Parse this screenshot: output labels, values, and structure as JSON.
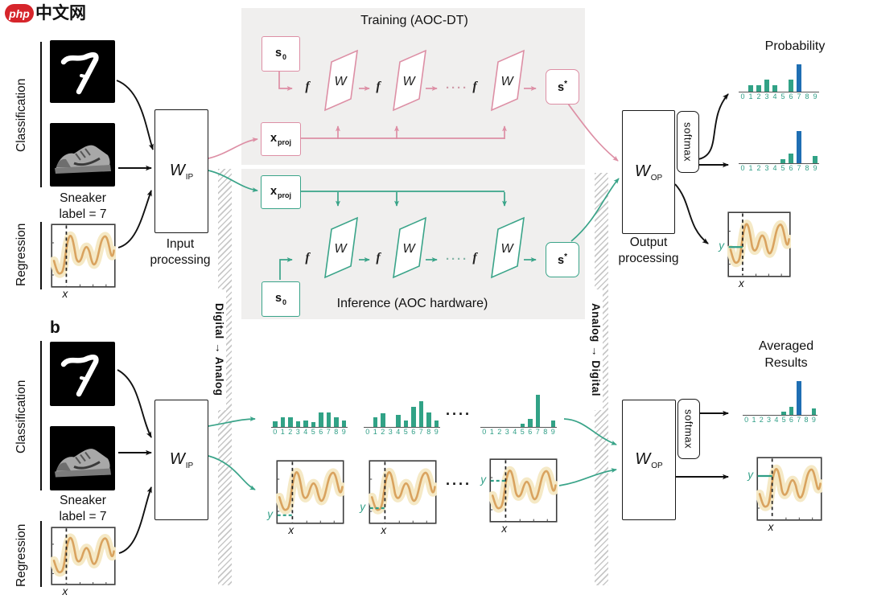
{
  "logo": {
    "brand": "php",
    "brand_suffix": "中文网"
  },
  "common": {
    "classification": "Classification",
    "regression": "Regression",
    "sneaker_line1": "Sneaker",
    "sneaker_line2": "label = 7",
    "w_matrix": "W",
    "w_input_main": "W",
    "w_input_sub": "IP",
    "w_output_main": "W",
    "w_output_sub": "OP",
    "softmax": "softmax",
    "s0_main": "s",
    "s0_sub": "0",
    "xproj_main": "x",
    "xproj_sub": "proj",
    "s_star_main": "s",
    "s_star_sup": "*",
    "f": "f",
    "x": "x",
    "y": "y",
    "dots": "····"
  },
  "panel_a": {
    "training_title": "Training (AOC-DT)",
    "inference_title": "Inference (AOC hardware)",
    "input_processing_line1": "Input",
    "input_processing_line2": "processing",
    "output_processing_line1": "Output",
    "output_processing_line2": "processing",
    "probability_title": "Probability"
  },
  "panel_b": {
    "label": "b",
    "averaged_line1": "Averaged",
    "averaged_line2": "Results"
  },
  "converters": {
    "left": "Digital → Analog",
    "right": "Analog → Digital"
  },
  "colors": {
    "pink": "#dd8fa5",
    "green": "#3aa489",
    "bar_green": "#31a286",
    "bar_blue": "#1f6fb3",
    "curve_orange": "#d9a35f",
    "panel_gray": "#f0efee"
  },
  "chart_data": [
    {
      "id": "prob_top",
      "type": "bar",
      "title": "Probability",
      "categories": [
        "0",
        "1",
        "2",
        "3",
        "4",
        "5",
        "6",
        "7",
        "8",
        "9"
      ],
      "values": [
        0,
        0.2,
        0.2,
        0.36,
        0.2,
        0,
        0.36,
        0.82,
        0,
        0
      ],
      "highlight_index": 7,
      "ylim": [
        0,
        1
      ],
      "grid": false
    },
    {
      "id": "prob_bottom",
      "type": "bar",
      "title": "Probability",
      "categories": [
        "0",
        "1",
        "2",
        "3",
        "4",
        "5",
        "6",
        "7",
        "8",
        "9"
      ],
      "values": [
        0,
        0,
        0,
        0,
        0,
        0.12,
        0.29,
        0.95,
        0,
        0.21
      ],
      "highlight_index": 7,
      "ylim": [
        0,
        1
      ],
      "grid": false
    },
    {
      "id": "b_run1",
      "type": "bar",
      "categories": [
        "0",
        "1",
        "2",
        "3",
        "4",
        "5",
        "6",
        "7",
        "8",
        "9"
      ],
      "values": [
        0.17,
        0.29,
        0.29,
        0.17,
        0.19,
        0.14,
        0.43,
        0.43,
        0.29,
        0.19
      ],
      "highlight_index": null,
      "ylim": [
        0,
        1
      ],
      "grid": false
    },
    {
      "id": "b_run2",
      "type": "bar",
      "categories": [
        "0",
        "1",
        "2",
        "3",
        "4",
        "5",
        "6",
        "7",
        "8",
        "9"
      ],
      "values": [
        0,
        0.29,
        0.4,
        0,
        0.36,
        0.19,
        0.6,
        0.76,
        0.43,
        0.19
      ],
      "highlight_index": null,
      "ylim": [
        0,
        1
      ],
      "grid": false
    },
    {
      "id": "b_run3",
      "type": "bar",
      "categories": [
        "0",
        "1",
        "2",
        "3",
        "4",
        "5",
        "6",
        "7",
        "8",
        "9"
      ],
      "values": [
        0,
        0,
        0,
        0,
        0,
        0.1,
        0.24,
        0.95,
        0,
        0.19
      ],
      "highlight_index": null,
      "ylim": [
        0,
        1
      ],
      "grid": false
    },
    {
      "id": "averaged",
      "type": "bar",
      "title": "Averaged Results",
      "categories": [
        "0",
        "1",
        "2",
        "3",
        "4",
        "5",
        "6",
        "7",
        "8",
        "9"
      ],
      "values": [
        0,
        0,
        0,
        0,
        0,
        0.1,
        0.24,
        1.0,
        0,
        0.19
      ],
      "highlight_index": 7,
      "ylim": [
        0,
        1
      ],
      "grid": false
    },
    {
      "id": "reg_input_a",
      "type": "line",
      "xlabel": "x",
      "ylabel": null,
      "marker_y": null,
      "marker_dashed": false
    },
    {
      "id": "reg_input_b",
      "type": "line",
      "xlabel": "x",
      "ylabel": null,
      "marker_y": null,
      "marker_dashed": false
    },
    {
      "id": "reg_out_a",
      "type": "line",
      "xlabel": "x",
      "ylabel": "y",
      "marker_y": 0.54,
      "marker_dashed": false
    },
    {
      "id": "reg_run1",
      "type": "line",
      "xlabel": "x",
      "ylabel": "y",
      "marker_y": 0.86,
      "marker_dashed": true
    },
    {
      "id": "reg_run2",
      "type": "line",
      "xlabel": "x",
      "ylabel": "y",
      "marker_y": 0.75,
      "marker_dashed": true
    },
    {
      "id": "reg_run3",
      "type": "line",
      "xlabel": "x",
      "ylabel": "y",
      "marker_y": 0.35,
      "marker_dashed": true
    },
    {
      "id": "reg_final",
      "type": "line",
      "xlabel": "x",
      "ylabel": "y",
      "marker_y": 0.3,
      "marker_dashed": false
    }
  ]
}
